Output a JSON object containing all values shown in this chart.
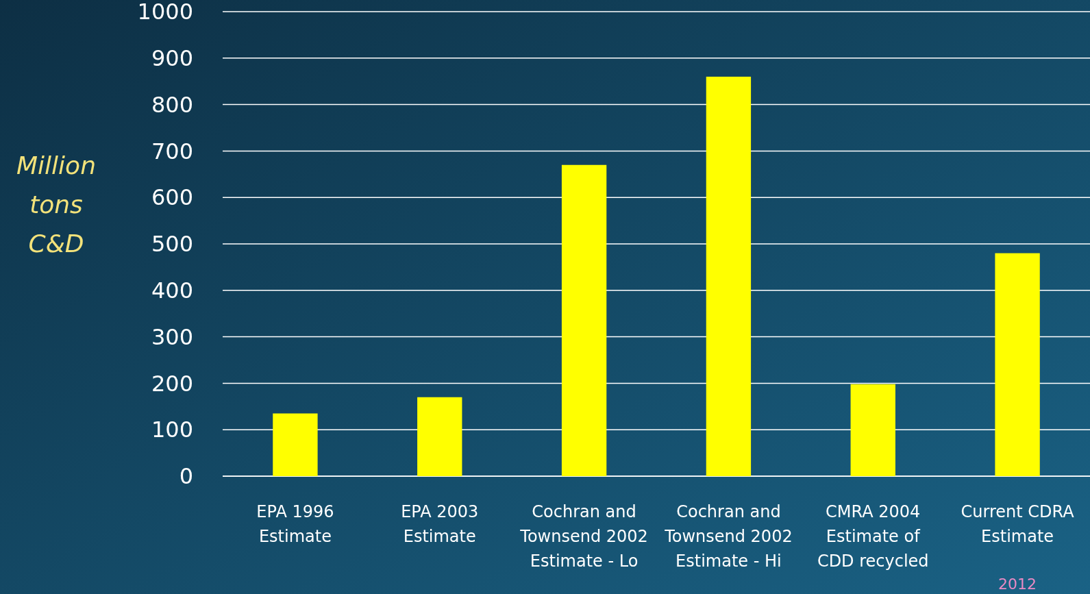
{
  "chart_data": {
    "type": "bar",
    "ylabel": "Million tons C&D",
    "categories": [
      "EPA 1996 Estimate",
      "EPA 2003 Estimate",
      "Cochran and Townsend 2002 Estimate - Lo",
      "Cochran and Townsend 2002 Estimate - Hi",
      "CMRA 2004 Estimate of CDD recycled",
      "Current CDRA Estimate"
    ],
    "values": [
      135,
      170,
      670,
      860,
      198,
      480
    ],
    "color": "#ffff00",
    "ylim": [
      0,
      1000
    ],
    "yticks": [
      0,
      100,
      200,
      300,
      400,
      500,
      600,
      700,
      800,
      900,
      1000
    ],
    "grid": "y",
    "annotations": [
      "2012"
    ]
  }
}
